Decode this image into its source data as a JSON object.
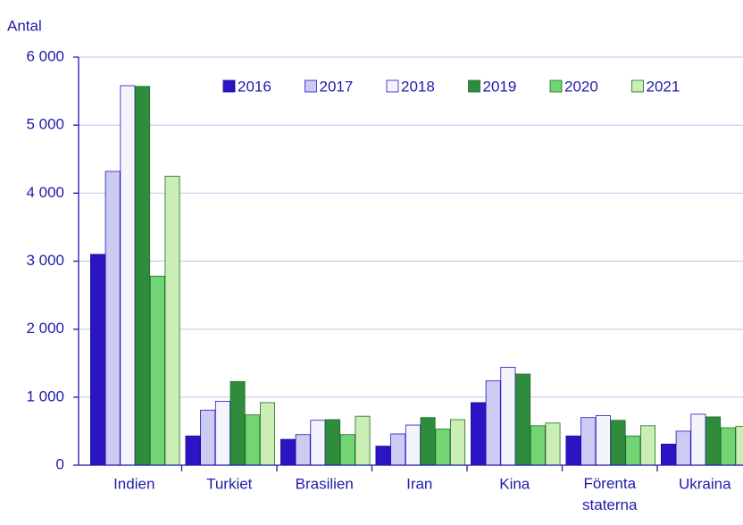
{
  "chart_data": {
    "type": "bar",
    "y_label": "Antal",
    "categories": [
      "Indien",
      "Turkiet",
      "Brasilien",
      "Iran",
      "Kina",
      "Förenta staterna",
      "Ukraina"
    ],
    "series": [
      {
        "name": "2016",
        "color": "#2a14c4",
        "values": [
          3100,
          430,
          380,
          280,
          920,
          430,
          310
        ]
      },
      {
        "name": "2017",
        "color": "#cccbf1",
        "values": [
          4320,
          810,
          450,
          460,
          1240,
          700,
          500
        ]
      },
      {
        "name": "2018",
        "color": "#f4f4fd",
        "values": [
          5580,
          940,
          660,
          590,
          1440,
          730,
          750
        ]
      },
      {
        "name": "2019",
        "color": "#2e8c3c",
        "values": [
          5570,
          1230,
          670,
          700,
          1340,
          660,
          710
        ]
      },
      {
        "name": "2020",
        "color": "#70d572",
        "values": [
          2780,
          740,
          450,
          530,
          580,
          430,
          550
        ]
      },
      {
        "name": "2021",
        "color": "#caeeb4",
        "values": [
          4250,
          920,
          720,
          670,
          620,
          580,
          570
        ]
      }
    ],
    "ylim": [
      0,
      6000
    ],
    "yticks": [
      0,
      {
        "value": 1000,
        "label": "1 000"
      },
      {
        "value": 2000,
        "label": "2 000"
      },
      {
        "value": 3000,
        "label": "3 000"
      },
      {
        "value": 4000,
        "label": "4 000"
      },
      {
        "value": 5000,
        "label": "5 000"
      },
      {
        "value": 6000,
        "label": "6 000"
      }
    ],
    "grid": true,
    "legend": "top"
  }
}
